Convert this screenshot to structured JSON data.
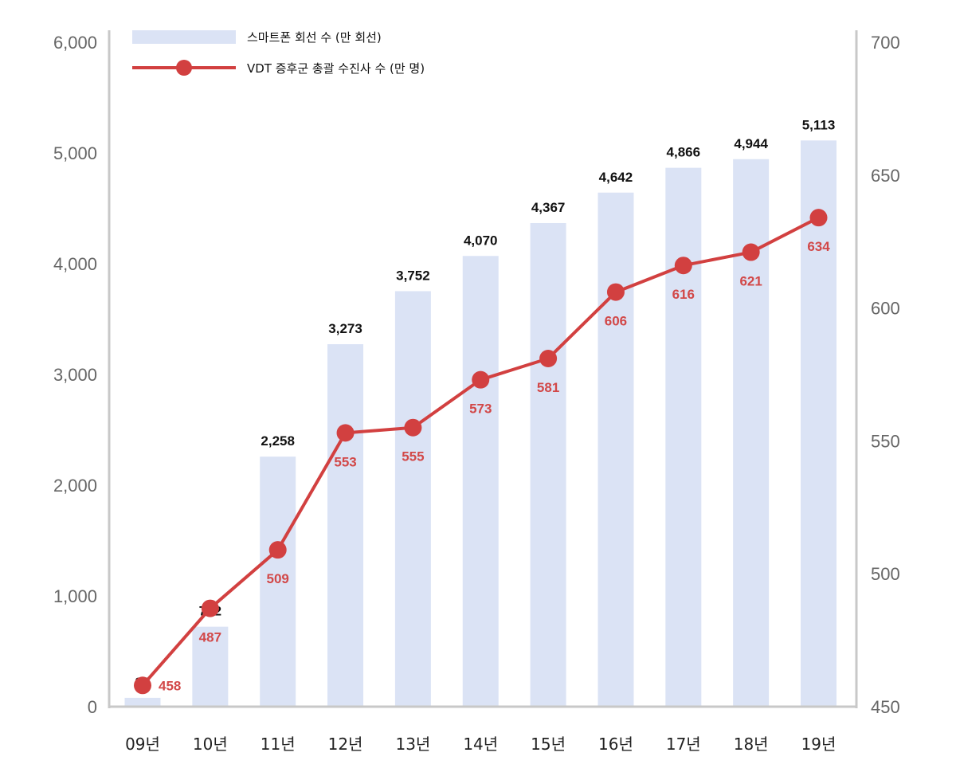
{
  "chart_data": {
    "type": "bar",
    "categories": [
      "09년",
      "10년",
      "11년",
      "12년",
      "13년",
      "14년",
      "15년",
      "16년",
      "17년",
      "18년",
      "19년"
    ],
    "series": [
      {
        "name": "스마트폰 회선 수 (만 회선)",
        "type": "bar",
        "axis": "left",
        "values": [
          80,
          722,
          2258,
          3273,
          3752,
          4070,
          4367,
          4642,
          4866,
          4944,
          5113
        ],
        "labels": [
          "80",
          "722",
          "2,258",
          "3,273",
          "3,752",
          "4,070",
          "4,367",
          "4,642",
          "4,866",
          "4,944",
          "5,113"
        ]
      },
      {
        "name": "VDT 증후군 총괄 수진사 수 (만 명)",
        "type": "line",
        "axis": "right",
        "values": [
          458,
          487,
          509,
          553,
          555,
          573,
          581,
          606,
          616,
          621,
          634
        ],
        "labels": [
          "458",
          "487",
          "509",
          "553",
          "555",
          "573",
          "581",
          "606",
          "616",
          "621",
          "634"
        ]
      }
    ],
    "ylim_left": [
      0,
      6000
    ],
    "yticks_left": [
      "0",
      "1,000",
      "2,000",
      "3,000",
      "4,000",
      "5,000",
      "6,000"
    ],
    "ylim_right": [
      450,
      700
    ],
    "yticks_right": [
      "450",
      "500",
      "550",
      "600",
      "650",
      "700"
    ],
    "legend_position": "top-left",
    "grid": false,
    "colors": {
      "bar": "#dbe3f5",
      "line": "#d24040",
      "axis": "#c8c8c8"
    }
  }
}
